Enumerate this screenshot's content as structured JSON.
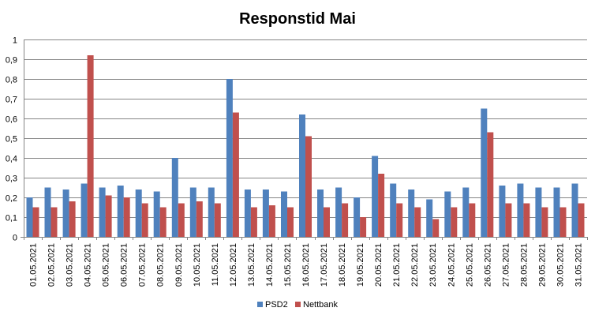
{
  "chart_data": {
    "type": "bar",
    "title": "Responstid Mai",
    "xlabel": "",
    "ylabel": "",
    "ylim": [
      0,
      1
    ],
    "y_ticks": [
      "0",
      "0,1",
      "0,2",
      "0,3",
      "0,4",
      "0,5",
      "0,6",
      "0,7",
      "0,8",
      "0,9",
      "1"
    ],
    "grid": true,
    "legend_position": "bottom",
    "categories": [
      "01.05.2021",
      "02.05.2021",
      "03.05.2021",
      "04.05.2021",
      "05.05.2021",
      "06.05.2021",
      "07.05.2021",
      "08.05.2021",
      "09.05.2021",
      "10.05.2021",
      "11.05.2021",
      "12.05.2021",
      "13.05.2021",
      "14.05.2021",
      "15.05.2021",
      "16.05.2021",
      "17.05.2021",
      "18.05.2021",
      "19.05.2021",
      "20.05.2021",
      "21.05.2021",
      "22.05.2021",
      "23.05.2021",
      "24.05.2021",
      "25.05.2021",
      "26.05.2021",
      "27.05.2021",
      "28.05.2021",
      "29.05.2021",
      "30.05.2021",
      "31.05.2021"
    ],
    "series": [
      {
        "name": "PSD2",
        "color": "#4F81BD",
        "values": [
          0.2,
          0.25,
          0.24,
          0.27,
          0.25,
          0.26,
          0.24,
          0.23,
          0.4,
          0.25,
          0.25,
          0.8,
          0.24,
          0.24,
          0.23,
          0.62,
          0.24,
          0.25,
          0.2,
          0.41,
          0.27,
          0.24,
          0.19,
          0.23,
          0.25,
          0.65,
          0.26,
          0.27,
          0.25,
          0.25,
          0.27
        ]
      },
      {
        "name": "Nettbank",
        "color": "#C0504D",
        "values": [
          0.15,
          0.15,
          0.18,
          0.92,
          0.21,
          0.2,
          0.17,
          0.15,
          0.17,
          0.18,
          0.17,
          0.63,
          0.15,
          0.16,
          0.15,
          0.51,
          0.15,
          0.17,
          0.1,
          0.32,
          0.17,
          0.15,
          0.09,
          0.15,
          0.17,
          0.53,
          0.17,
          0.17,
          0.15,
          0.15,
          0.17
        ]
      }
    ]
  }
}
